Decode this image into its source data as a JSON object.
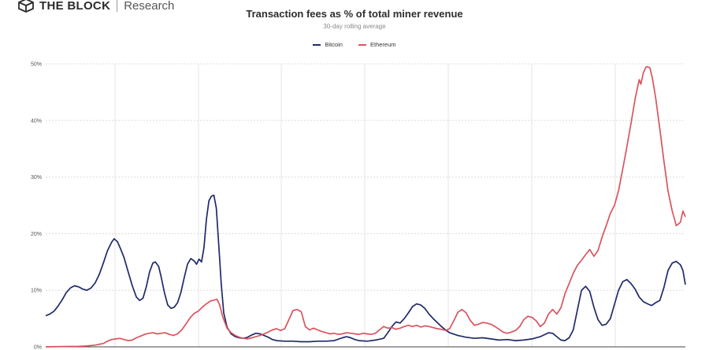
{
  "brand": {
    "name": "THE BLOCK",
    "sub": "Research",
    "logo_icon": "block-cube-icon"
  },
  "chart_data": {
    "type": "line",
    "title": "Transaction fees as % of total miner revenue",
    "subtitle": "30-day rolling average",
    "xlabel": "",
    "ylabel": "",
    "ylim": [
      0,
      50
    ],
    "yticks": [
      0,
      10,
      20,
      30,
      40,
      50
    ],
    "ytick_labels": [
      "0%",
      "10%",
      "20%",
      "30%",
      "40%",
      "50%"
    ],
    "grid": true,
    "legend": "top-center",
    "series": [
      {
        "name": "Bitcoin",
        "color": "#1f2a6b",
        "points": [
          [
            0,
            5.5
          ],
          [
            0.5,
            5.8
          ],
          [
            1,
            6.3
          ],
          [
            1.5,
            7.2
          ],
          [
            2,
            8.3
          ],
          [
            2.5,
            9.6
          ],
          [
            3,
            10.4
          ],
          [
            3.5,
            10.8
          ],
          [
            4,
            10.6
          ],
          [
            4.5,
            10.2
          ],
          [
            5,
            10.0
          ],
          [
            5.5,
            10.4
          ],
          [
            6,
            11.3
          ],
          [
            6.5,
            12.8
          ],
          [
            7,
            14.8
          ],
          [
            7.5,
            17.0
          ],
          [
            8,
            18.5
          ],
          [
            8.3,
            19.1
          ],
          [
            8.7,
            18.6
          ],
          [
            9,
            17.6
          ],
          [
            9.5,
            15.8
          ],
          [
            10,
            13.3
          ],
          [
            10.5,
            10.8
          ],
          [
            11,
            8.8
          ],
          [
            11.4,
            8.2
          ],
          [
            11.8,
            8.6
          ],
          [
            12.2,
            10.6
          ],
          [
            12.6,
            13.2
          ],
          [
            13,
            14.8
          ],
          [
            13.3,
            15.0
          ],
          [
            13.7,
            14.2
          ],
          [
            14,
            12.4
          ],
          [
            14.4,
            9.6
          ],
          [
            14.8,
            7.4
          ],
          [
            15.2,
            6.8
          ],
          [
            15.6,
            7.0
          ],
          [
            16,
            7.8
          ],
          [
            16.4,
            9.6
          ],
          [
            16.8,
            12.2
          ],
          [
            17.2,
            14.6
          ],
          [
            17.6,
            15.6
          ],
          [
            18,
            15.2
          ],
          [
            18.3,
            14.6
          ],
          [
            18.6,
            15.5
          ],
          [
            18.9,
            15.0
          ],
          [
            19.2,
            17.5
          ],
          [
            19.5,
            22.5
          ],
          [
            19.8,
            25.8
          ],
          [
            20.1,
            26.6
          ],
          [
            20.4,
            26.8
          ],
          [
            20.7,
            24.5
          ],
          [
            21,
            18.0
          ],
          [
            21.3,
            11.0
          ],
          [
            21.6,
            6.0
          ],
          [
            22,
            3.5
          ],
          [
            22.5,
            2.3
          ],
          [
            23,
            1.8
          ],
          [
            23.5,
            1.6
          ],
          [
            24,
            1.5
          ],
          [
            24.5,
            1.7
          ],
          [
            25,
            2.1
          ],
          [
            25.5,
            2.4
          ],
          [
            26,
            2.3
          ],
          [
            26.5,
            2.0
          ],
          [
            27,
            1.7
          ],
          [
            27.5,
            1.3
          ],
          [
            28,
            1.1
          ],
          [
            29,
            1.0
          ],
          [
            30,
            1.0
          ],
          [
            31,
            0.9
          ],
          [
            32,
            0.9
          ],
          [
            33,
            1.0
          ],
          [
            34,
            1.0
          ],
          [
            35,
            1.1
          ],
          [
            36,
            1.6
          ],
          [
            36.5,
            1.8
          ],
          [
            37,
            1.6
          ],
          [
            37.5,
            1.3
          ],
          [
            38,
            1.1
          ],
          [
            39,
            1.0
          ],
          [
            40,
            1.2
          ],
          [
            41,
            1.5
          ],
          [
            41.5,
            2.5
          ],
          [
            42,
            3.6
          ],
          [
            42.5,
            4.4
          ],
          [
            43,
            4.2
          ],
          [
            43.5,
            5.0
          ],
          [
            44,
            6.0
          ],
          [
            44.5,
            7.1
          ],
          [
            45,
            7.6
          ],
          [
            45.5,
            7.4
          ],
          [
            46,
            6.8
          ],
          [
            46.5,
            5.8
          ],
          [
            47,
            5.0
          ],
          [
            47.5,
            4.3
          ],
          [
            48,
            3.6
          ],
          [
            48.5,
            3.0
          ],
          [
            49,
            2.5
          ],
          [
            50,
            2.0
          ],
          [
            51,
            1.7
          ],
          [
            52,
            1.5
          ],
          [
            53,
            1.6
          ],
          [
            54,
            1.4
          ],
          [
            55,
            1.2
          ],
          [
            56,
            1.3
          ],
          [
            57,
            1.1
          ],
          [
            58,
            1.2
          ],
          [
            59,
            1.4
          ],
          [
            60,
            1.8
          ],
          [
            61,
            2.5
          ],
          [
            61.5,
            2.4
          ],
          [
            62,
            1.8
          ],
          [
            62.5,
            1.2
          ],
          [
            63,
            1.1
          ],
          [
            63.5,
            1.6
          ],
          [
            64,
            3.0
          ],
          [
            64.5,
            6.5
          ],
          [
            65,
            10.0
          ],
          [
            65.5,
            10.7
          ],
          [
            66,
            9.8
          ],
          [
            66.5,
            7.0
          ],
          [
            67,
            4.8
          ],
          [
            67.5,
            3.8
          ],
          [
            68,
            4.0
          ],
          [
            68.5,
            5.0
          ],
          [
            69,
            7.5
          ],
          [
            69.5,
            10.0
          ],
          [
            70,
            11.5
          ],
          [
            70.5,
            11.9
          ],
          [
            71,
            11.2
          ],
          [
            71.5,
            10.2
          ],
          [
            72,
            8.8
          ],
          [
            72.5,
            8.0
          ],
          [
            73,
            7.6
          ],
          [
            73.5,
            7.3
          ],
          [
            74,
            7.8
          ],
          [
            74.5,
            8.2
          ],
          [
            75,
            10.5
          ],
          [
            75.5,
            13.5
          ],
          [
            76,
            14.8
          ],
          [
            76.5,
            15.1
          ],
          [
            77,
            14.5
          ],
          [
            77.3,
            13.5
          ],
          [
            77.6,
            11.0
          ]
        ]
      },
      {
        "name": "Ethereum",
        "color": "#d9545e",
        "points": [
          [
            0,
            0.0
          ],
          [
            2,
            0.05
          ],
          [
            4,
            0.1
          ],
          [
            5,
            0.15
          ],
          [
            6,
            0.3
          ],
          [
            7,
            0.6
          ],
          [
            7.5,
            1.0
          ],
          [
            8,
            1.3
          ],
          [
            8.5,
            1.4
          ],
          [
            9,
            1.5
          ],
          [
            9.5,
            1.3
          ],
          [
            10,
            1.1
          ],
          [
            10.5,
            1.2
          ],
          [
            11,
            1.6
          ],
          [
            11.5,
            1.9
          ],
          [
            12,
            2.2
          ],
          [
            12.5,
            2.4
          ],
          [
            13,
            2.5
          ],
          [
            13.5,
            2.3
          ],
          [
            14,
            2.4
          ],
          [
            14.5,
            2.5
          ],
          [
            15,
            2.2
          ],
          [
            15.5,
            2.0
          ],
          [
            16,
            2.3
          ],
          [
            16.5,
            3.0
          ],
          [
            17,
            4.0
          ],
          [
            17.5,
            5.1
          ],
          [
            18,
            5.9
          ],
          [
            18.5,
            6.3
          ],
          [
            19,
            7.0
          ],
          [
            19.5,
            7.6
          ],
          [
            20,
            8.1
          ],
          [
            20.5,
            8.3
          ],
          [
            20.8,
            8.4
          ],
          [
            21.1,
            7.4
          ],
          [
            21.5,
            5.2
          ],
          [
            22,
            3.3
          ],
          [
            22.5,
            2.5
          ],
          [
            23,
            2.0
          ],
          [
            23.5,
            1.7
          ],
          [
            24,
            1.5
          ],
          [
            24.5,
            1.4
          ],
          [
            25,
            1.6
          ],
          [
            25.5,
            1.8
          ],
          [
            26,
            2.0
          ],
          [
            27,
            2.6
          ],
          [
            27.5,
            3.0
          ],
          [
            28,
            3.2
          ],
          [
            28.5,
            2.9
          ],
          [
            29,
            3.2
          ],
          [
            29.5,
            4.8
          ],
          [
            30,
            6.4
          ],
          [
            30.5,
            6.6
          ],
          [
            31,
            6.2
          ],
          [
            31.5,
            3.6
          ],
          [
            32,
            3.0
          ],
          [
            32.5,
            3.3
          ],
          [
            33,
            3.0
          ],
          [
            33.5,
            2.7
          ],
          [
            34,
            2.5
          ],
          [
            34.5,
            2.3
          ],
          [
            35,
            2.4
          ],
          [
            35.5,
            2.2
          ],
          [
            36,
            2.3
          ],
          [
            36.5,
            2.5
          ],
          [
            37,
            2.4
          ],
          [
            37.5,
            2.3
          ],
          [
            38,
            2.2
          ],
          [
            38.5,
            2.4
          ],
          [
            39,
            2.3
          ],
          [
            39.5,
            2.2
          ],
          [
            40,
            2.4
          ],
          [
            40.5,
            3.0
          ],
          [
            41,
            3.6
          ],
          [
            41.5,
            3.3
          ],
          [
            42,
            3.4
          ],
          [
            42.5,
            3.1
          ],
          [
            43,
            3.3
          ],
          [
            43.5,
            3.6
          ],
          [
            44,
            3.8
          ],
          [
            44.5,
            3.6
          ],
          [
            45,
            3.8
          ],
          [
            45.5,
            3.5
          ],
          [
            46,
            3.7
          ],
          [
            46.5,
            3.6
          ],
          [
            47,
            3.4
          ],
          [
            47.5,
            3.2
          ],
          [
            48,
            3.1
          ],
          [
            48.5,
            2.9
          ],
          [
            49,
            3.2
          ],
          [
            49.5,
            4.6
          ],
          [
            50,
            6.1
          ],
          [
            50.5,
            6.6
          ],
          [
            51,
            6.0
          ],
          [
            51.5,
            4.7
          ],
          [
            52,
            3.8
          ],
          [
            52.5,
            4.0
          ],
          [
            53,
            4.3
          ],
          [
            53.5,
            4.2
          ],
          [
            54,
            4.0
          ],
          [
            54.5,
            3.6
          ],
          [
            55,
            3.1
          ],
          [
            55.5,
            2.6
          ],
          [
            56,
            2.4
          ],
          [
            56.5,
            2.6
          ],
          [
            57,
            2.9
          ],
          [
            57.5,
            3.6
          ],
          [
            58,
            4.8
          ],
          [
            58.5,
            5.4
          ],
          [
            59,
            5.2
          ],
          [
            59.5,
            4.6
          ],
          [
            60,
            3.6
          ],
          [
            60.5,
            4.2
          ],
          [
            61,
            5.8
          ],
          [
            61.5,
            6.6
          ],
          [
            62,
            5.8
          ],
          [
            62.5,
            6.9
          ],
          [
            63,
            9.4
          ],
          [
            63.5,
            11.2
          ],
          [
            64,
            13.0
          ],
          [
            64.5,
            14.4
          ],
          [
            65,
            15.3
          ],
          [
            65.5,
            16.3
          ],
          [
            66,
            17.2
          ],
          [
            66.5,
            16.0
          ],
          [
            67,
            17.0
          ],
          [
            67.5,
            19.4
          ],
          [
            68,
            21.4
          ],
          [
            68.5,
            23.6
          ],
          [
            69,
            25.0
          ],
          [
            69.5,
            27.6
          ],
          [
            70,
            31.4
          ],
          [
            70.5,
            35.3
          ],
          [
            71,
            39.4
          ],
          [
            71.5,
            43.8
          ],
          [
            72,
            47.2
          ],
          [
            72.2,
            46.4
          ],
          [
            72.5,
            48.4
          ],
          [
            72.8,
            49.4
          ],
          [
            73,
            49.5
          ],
          [
            73.3,
            49.3
          ],
          [
            73.6,
            47.5
          ],
          [
            74,
            44.0
          ],
          [
            74.5,
            38.5
          ],
          [
            75,
            32.8
          ],
          [
            75.5,
            27.5
          ],
          [
            76,
            24.0
          ],
          [
            76.5,
            21.4
          ],
          [
            77,
            22.0
          ],
          [
            77.3,
            24.0
          ],
          [
            77.6,
            23.0
          ]
        ]
      }
    ]
  }
}
